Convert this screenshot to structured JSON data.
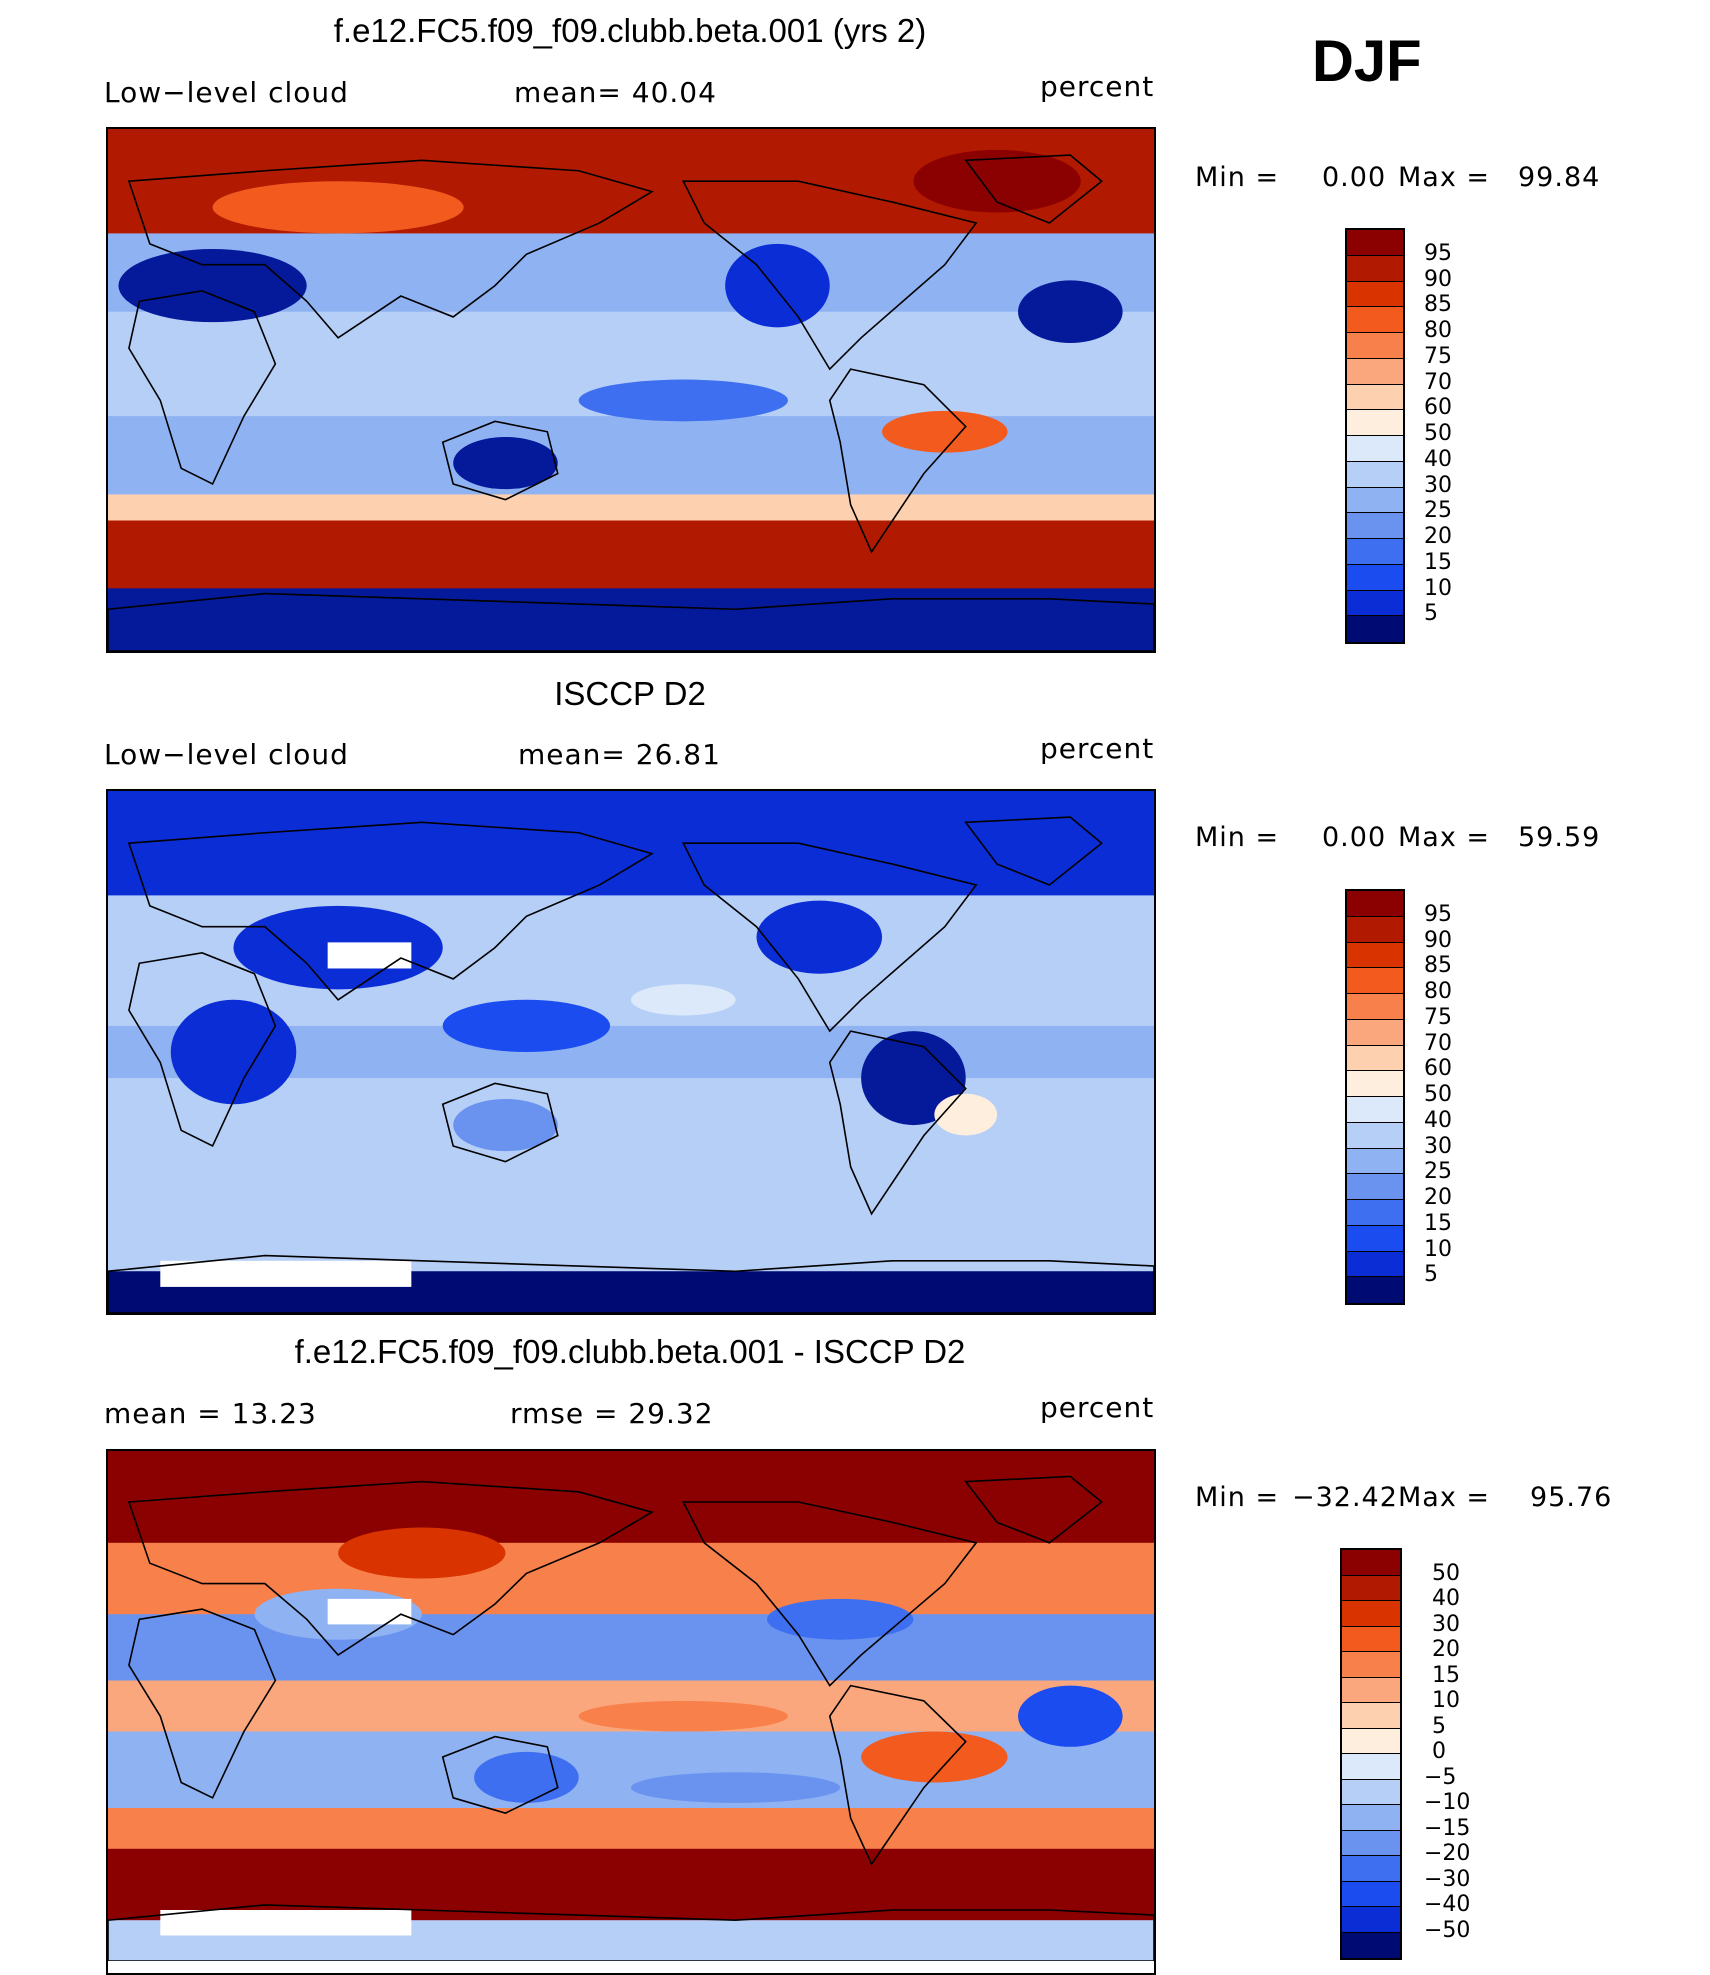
{
  "season": "DJF",
  "colors": {
    "red_to_blue_20": [
      "#8b0000",
      "#b11a00",
      "#d93300",
      "#f25a1e",
      "#f8804a",
      "#fba77d",
      "#fdd0b0",
      "#fdeedd",
      "#dce9fb",
      "#b6cff7",
      "#8fb2f2",
      "#6a93ef",
      "#3e6ff0",
      "#1a4cf0",
      "#0a2dd6",
      "#041a9b",
      "#000a73"
    ]
  },
  "panels": [
    {
      "title": "f.e12.FC5.f09_f09.clubb.beta.001 (yrs 2)",
      "left_label": "Low−level cloud",
      "middle_label": "mean=   40.04",
      "units": "percent",
      "min_label": "Min  =",
      "min_value": "0.00",
      "max_label": "Max  =",
      "max_value": "99.84",
      "colorbar_ticks": [
        "95",
        "90",
        "85",
        "80",
        "75",
        "70",
        "60",
        "50",
        "40",
        "30",
        "25",
        "20",
        "15",
        "10",
        "5"
      ],
      "field_mean": 40.04
    },
    {
      "title": "ISCCP D2",
      "left_label": "Low−level cloud",
      "middle_label": "mean=   26.81",
      "units": "percent",
      "min_label": "Min  =",
      "min_value": "0.00",
      "max_label": "Max  =",
      "max_value": "59.59",
      "colorbar_ticks": [
        "95",
        "90",
        "85",
        "80",
        "75",
        "70",
        "60",
        "50",
        "40",
        "30",
        "25",
        "20",
        "15",
        "10",
        "5"
      ],
      "field_mean": 26.81
    },
    {
      "title": "f.e12.FC5.f09_f09.clubb.beta.001 - ISCCP D2",
      "left_label": "mean  =    13.23",
      "middle_label": "rmse  =    29.32",
      "units": "percent",
      "min_label": "Min  =",
      "min_value": "−32.42",
      "max_label": "Max  =",
      "max_value": "95.76",
      "colorbar_ticks": [
        "50",
        "40",
        "30",
        "20",
        "15",
        "10",
        "5",
        "0",
        "−5",
        "−10",
        "−15",
        "−20",
        "−30",
        "−40",
        "−50"
      ],
      "field_mean": 13.23
    }
  ]
}
